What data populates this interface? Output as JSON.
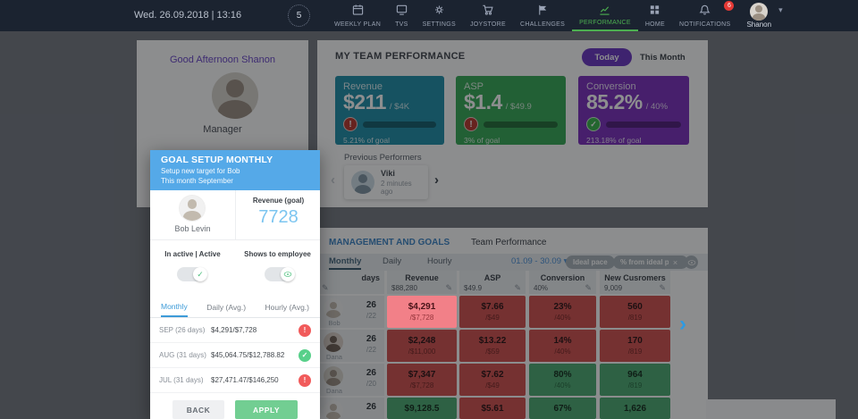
{
  "topbar": {
    "datetime": "Wed. 26.09.2018 | 13:16",
    "streak_badge": "5",
    "nav": [
      {
        "label": "WEEKLY PLAN",
        "icon": "calendar-icon"
      },
      {
        "label": "TVS",
        "icon": "tv-icon"
      },
      {
        "label": "SETTINGS",
        "icon": "gear-icon"
      },
      {
        "label": "JOYSTORE",
        "icon": "cart-icon"
      },
      {
        "label": "CHALLENGES",
        "icon": "flag-icon"
      },
      {
        "label": "PERFORMANCE",
        "icon": "line-chart-icon",
        "active": true
      },
      {
        "label": "HOME",
        "icon": "grid-icon"
      },
      {
        "label": "NOTIFICATIONS",
        "icon": "bell-icon",
        "badge": "6"
      }
    ],
    "user": {
      "name": "Shanon"
    }
  },
  "profile": {
    "greeting": "Good Afternoon Shanon",
    "role": "Manager"
  },
  "team_performance": {
    "title": "MY TEAM PERFORMANCE",
    "today_label": "Today",
    "this_month_label": "This Month",
    "kpis": [
      {
        "label": "Revenue",
        "value": "$211",
        "target": "/ $4K",
        "status": "warning",
        "goal_text": "5.21% of goal",
        "progress": 6,
        "color": "#1f8fa8"
      },
      {
        "label": "ASP",
        "value": "$1.4",
        "target": "/ $49.9",
        "status": "warning",
        "goal_text": "3% of goal",
        "progress": 4,
        "color": "#35a855"
      },
      {
        "label": "Conversion",
        "value": "85.2%",
        "target": "/ 40%",
        "status": "success",
        "goal_text": "213.18% of goal",
        "progress": 100,
        "color": "#7b2fbe"
      }
    ]
  },
  "previous_performers": {
    "title": "Previous Performers",
    "items": [
      {
        "name": "Viki",
        "time": "2 minutes ago"
      }
    ]
  },
  "management": {
    "tab_management": "MANAGEMENT AND GOALS",
    "tab_team": "Team Performance",
    "period_tabs": [
      {
        "label": "Monthly",
        "active": true
      },
      {
        "label": "Daily"
      },
      {
        "label": "Hourly"
      }
    ],
    "date_range": "01.09 - 30.09",
    "pills": [
      "Ideal pace",
      "% from ideal pace"
    ],
    "table": {
      "columns": [
        {
          "label": "days",
          "value": ""
        },
        {
          "label": "Revenue",
          "value": "$88,280"
        },
        {
          "label": "ASP",
          "value": "$49.9"
        },
        {
          "label": "Conversion",
          "value": "40%"
        },
        {
          "label": "New Cusromers",
          "value": "9,009"
        }
      ],
      "rows": [
        {
          "name": "Bob",
          "days": "26",
          "days_target": "/22",
          "cells": [
            {
              "v": "$4,291",
              "t": "/$7,728",
              "state": "highlight"
            },
            {
              "v": "$7.66",
              "t": "/$49",
              "state": "bad"
            },
            {
              "v": "23%",
              "t": "/40%",
              "state": "bad"
            },
            {
              "v": "560",
              "t": "/819",
              "state": "bad"
            }
          ]
        },
        {
          "name": "Dana",
          "days": "26",
          "days_target": "/22",
          "cells": [
            {
              "v": "$2,248",
              "t": "/$11,000",
              "state": "bad"
            },
            {
              "v": "$13.22",
              "t": "/$59",
              "state": "bad"
            },
            {
              "v": "14%",
              "t": "/40%",
              "state": "bad"
            },
            {
              "v": "170",
              "t": "/819",
              "state": "bad"
            }
          ]
        },
        {
          "name": "Dana",
          "days": "26",
          "days_target": "/20",
          "cells": [
            {
              "v": "$7,347",
              "t": "/$7,728",
              "state": "bad"
            },
            {
              "v": "$7.62",
              "t": "/$49",
              "state": "bad"
            },
            {
              "v": "80%",
              "t": "/40%",
              "state": "good"
            },
            {
              "v": "964",
              "t": "/819",
              "state": "good"
            }
          ]
        },
        {
          "name": "",
          "days": "26",
          "days_target": "",
          "cells": [
            {
              "v": "$9,128.5",
              "t": "",
              "state": "good"
            },
            {
              "v": "$5.61",
              "t": "",
              "state": "bad"
            },
            {
              "v": "67%",
              "t": "",
              "state": "good"
            },
            {
              "v": "1,626",
              "t": "",
              "state": "good"
            }
          ]
        }
      ]
    }
  },
  "modal": {
    "title": "GOAL SETUP MONTHLY",
    "subtitle1": "Setup new target for Bob",
    "subtitle2": "This month September",
    "employee_name": "Bob Levin",
    "goal_label": "Revenue (goal)",
    "goal_value": "7728",
    "toggle_active_label": "In active | Active",
    "toggle_show_label": "Shows to employee",
    "tabs": [
      {
        "label": "Monthly",
        "active": true
      },
      {
        "label": "Daily (Avg.)"
      },
      {
        "label": "Hourly (Avg.)"
      }
    ],
    "rows": [
      {
        "period": "SEP (26 days)",
        "value": "$4,291/$7,728",
        "status": "warning"
      },
      {
        "period": "AUG (31 days)",
        "value": "$45,064.75/$12,788.82",
        "status": "success"
      },
      {
        "period": "JUL (31 days)",
        "value": "$27,471.47/$146,250",
        "status": "warning"
      }
    ],
    "back_label": "BACK",
    "apply_label": "APPLY"
  },
  "colors": {
    "topbar": "#1b2330",
    "modal_header": "#55a9e8",
    "goal_value": "#7cc5f0",
    "kpi_revenue": "#1f8fa8",
    "kpi_asp": "#35a855",
    "kpi_conversion": "#7b2fbe",
    "today_pill": "#6a35c2",
    "nav_active": "#4caf50",
    "cell_bad": "#d2504e",
    "cell_good": "#4cab71",
    "cell_highlight": "#f28088"
  }
}
